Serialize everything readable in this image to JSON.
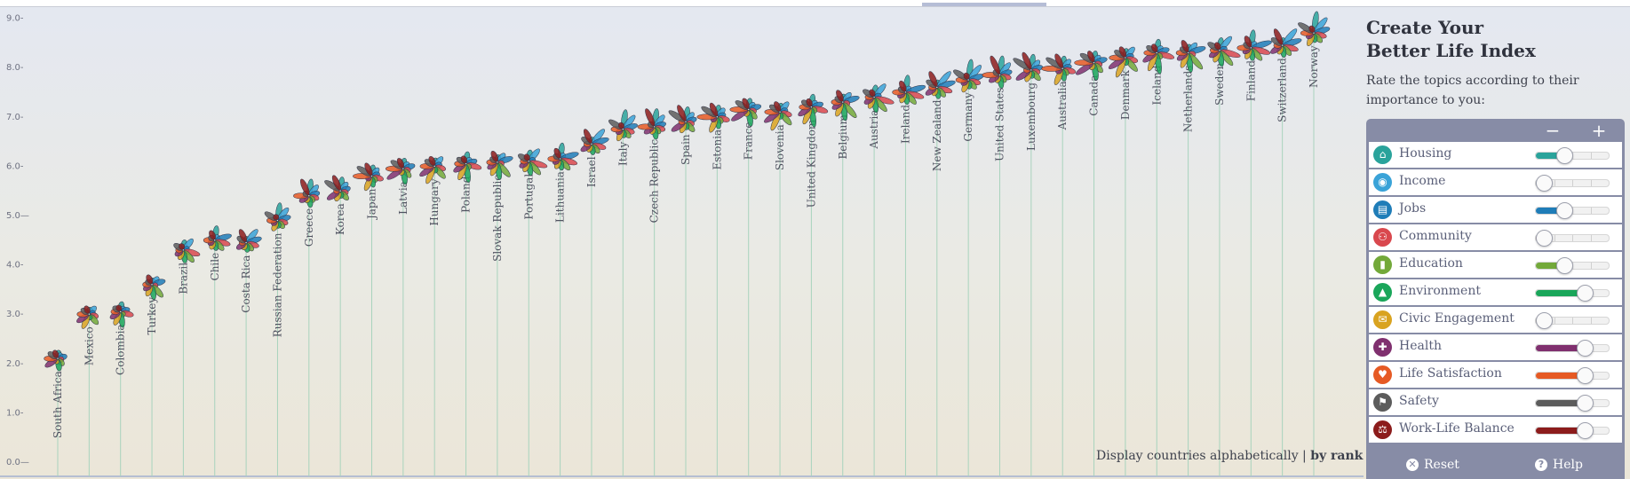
{
  "chart_data": {
    "type": "flower-rank",
    "title": "Better Life Index",
    "yticks": [
      "0.0—",
      "1.0-",
      "2.0-",
      "3.0-",
      "4.0-",
      "5.0—",
      "6.0-",
      "7.0-",
      "8.0-",
      "9.0-"
    ],
    "ylim": [
      0,
      9.4
    ],
    "countries": [
      "South Africa",
      "Mexico",
      "Colombia",
      "Turkey",
      "Brazil",
      "Chile",
      "Costa Rica",
      "Russian Federation",
      "Greece",
      "Korea",
      "Japan",
      "Latvia",
      "Hungary",
      "Poland",
      "Slovak Republic",
      "Portugal",
      "Lithuania",
      "Israel",
      "Italy",
      "Czech Republic",
      "Spain",
      "Estonia",
      "France",
      "Slovenia",
      "United Kingdom",
      "Belgium",
      "Austria",
      "Ireland",
      "New Zealand",
      "Germany",
      "United States",
      "Luxembourg",
      "Australia",
      "Canada",
      "Denmark",
      "Iceland",
      "Netherlands",
      "Sweden",
      "Finland",
      "Switzerland",
      "Norway"
    ],
    "scores": [
      2.1,
      3.0,
      3.05,
      3.6,
      4.3,
      4.5,
      4.45,
      4.9,
      5.4,
      5.5,
      5.8,
      5.95,
      6.0,
      6.05,
      6.08,
      6.1,
      6.15,
      6.45,
      6.75,
      6.8,
      6.9,
      7.0,
      7.15,
      7.1,
      7.2,
      7.3,
      7.4,
      7.5,
      7.6,
      7.75,
      7.85,
      7.95,
      7.98,
      8.1,
      8.2,
      8.3,
      8.3,
      8.35,
      8.4,
      8.45,
      8.7
    ],
    "topic_colors": [
      "#2aa39b",
      "#3aa3d8",
      "#1f7db8",
      "#d9484e",
      "#73a93a",
      "#1aa65a",
      "#d9a320",
      "#80306f",
      "#e65a24",
      "#5c5c5c",
      "#8c1c1c"
    ]
  },
  "sort": {
    "prefix": "Display countries alphabetically",
    "separator": " | ",
    "active": "by rank"
  },
  "panel": {
    "title_line1": "Create Your",
    "title_line2": "Better Life Index",
    "subtitle": "Rate the topics according to their importance to you:",
    "minus": "−",
    "plus": "+",
    "reset": "Reset",
    "help": "Help",
    "reset_icon": "✕",
    "help_icon": "?",
    "topics": [
      {
        "label": "Housing",
        "color": "#2aa39b",
        "icon": "⌂",
        "level": 0.4
      },
      {
        "label": "Income",
        "color": "#3aa3d8",
        "icon": "◉",
        "level": 0.0
      },
      {
        "label": "Jobs",
        "color": "#1f7db8",
        "icon": "▤",
        "level": 0.4
      },
      {
        "label": "Community",
        "color": "#d9484e",
        "icon": "⚇",
        "level": 0.0
      },
      {
        "label": "Education",
        "color": "#73a93a",
        "icon": "▮",
        "level": 0.4
      },
      {
        "label": "Environment",
        "color": "#1aa65a",
        "icon": "▲",
        "level": 0.8
      },
      {
        "label": "Civic Engagement",
        "color": "#d9a320",
        "icon": "✉",
        "level": 0.0
      },
      {
        "label": "Health",
        "color": "#80306f",
        "icon": "✚",
        "level": 0.8
      },
      {
        "label": "Life Satisfaction",
        "color": "#e65a24",
        "icon": "♥",
        "level": 0.8
      },
      {
        "label": "Safety",
        "color": "#5c5c5c",
        "icon": "⚑",
        "level": 0.8
      },
      {
        "label": "Work-Life Balance",
        "color": "#8c1c1c",
        "icon": "⚖",
        "level": 0.8
      }
    ]
  }
}
